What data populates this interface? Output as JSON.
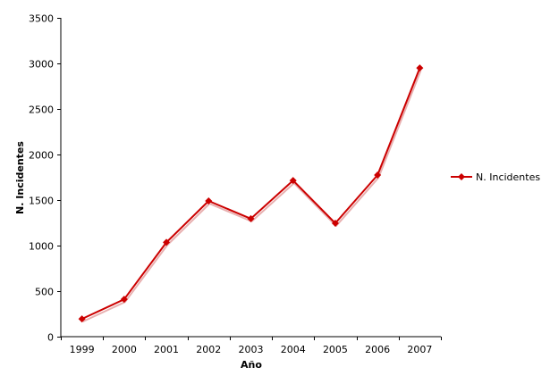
{
  "chart_data": {
    "type": "line",
    "title": "",
    "xlabel": "Año",
    "ylabel": "N. Incidentes",
    "categories": [
      "1999",
      "2000",
      "2001",
      "2002",
      "2003",
      "2004",
      "2005",
      "2006",
      "2007"
    ],
    "series": [
      {
        "name": "N. Incidentes",
        "values": [
          195,
          410,
          1035,
          1490,
          1295,
          1715,
          1245,
          1775,
          2950
        ],
        "color": "#cc0000",
        "marker": "diamond"
      }
    ],
    "ylim": [
      0,
      3500
    ],
    "yticks": [
      0,
      500,
      1000,
      1500,
      2000,
      2500,
      3000,
      3500
    ],
    "grid": false,
    "legend": "right"
  }
}
